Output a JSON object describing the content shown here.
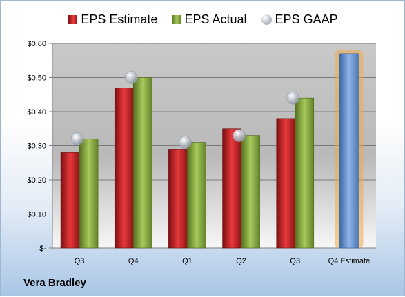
{
  "legend": {
    "estimate": "EPS Estimate",
    "actual": "EPS Actual",
    "gaap": "EPS GAAP"
  },
  "footer": {
    "company": "Vera Bradley"
  },
  "colors": {
    "estimate": "#c8262a",
    "actual": "#8aad3f",
    "forecast": "#6c9ad6",
    "forecast_glow": "#f3a94a",
    "gaap": "#b9c0ca"
  },
  "chart_data": {
    "type": "bar",
    "categories": [
      "Q3",
      "Q4",
      "Q1",
      "Q2",
      "Q3",
      "Q4 Estimate"
    ],
    "series": [
      {
        "name": "EPS Estimate",
        "values": [
          0.28,
          0.47,
          0.29,
          0.35,
          0.38,
          null
        ]
      },
      {
        "name": "EPS Actual",
        "values": [
          0.32,
          0.5,
          0.31,
          0.33,
          0.44,
          null
        ]
      },
      {
        "name": "EPS GAAP",
        "values": [
          0.32,
          0.5,
          0.31,
          0.33,
          0.44,
          null
        ]
      }
    ],
    "forecast": {
      "category": "Q4 Estimate",
      "value": 0.57
    },
    "ylim": [
      0,
      0.6
    ],
    "yticks": [
      0,
      0.1,
      0.2,
      0.3,
      0.4,
      0.5,
      0.6
    ],
    "ytick_labels": [
      "$-",
      "$0.10",
      "$0.20",
      "$0.30",
      "$0.40",
      "$0.50",
      "$0.60"
    ],
    "grid": true,
    "legend_position": "top"
  }
}
